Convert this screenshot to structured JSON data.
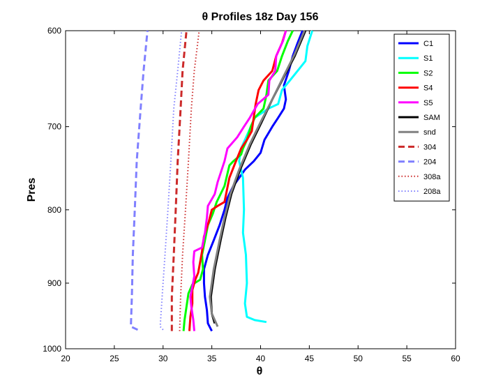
{
  "chart_data": {
    "type": "line",
    "title": "θ Profiles 18z Day 156",
    "xlabel": "θ",
    "ylabel": "Pres",
    "xlim": [
      20,
      60
    ],
    "ylim": [
      600,
      1000
    ],
    "y_reversed": true,
    "x_ticks": [
      "20",
      "25",
      "30",
      "35",
      "40",
      "45",
      "50",
      "55",
      "60"
    ],
    "y_ticks": [
      "600",
      "700",
      "800",
      "900",
      "1000"
    ],
    "y_tick_values": [
      600,
      700,
      800,
      900,
      1000
    ],
    "grid": false,
    "legend_position": "top-right",
    "series": [
      {
        "name": "C1",
        "color": "#0000ff",
        "style": "solid",
        "width": 3,
        "points": [
          [
            35.0,
            972
          ],
          [
            34.6,
            960
          ],
          [
            34.5,
            940
          ],
          [
            34.3,
            920
          ],
          [
            34.2,
            900
          ],
          [
            34.2,
            880
          ],
          [
            34.6,
            860
          ],
          [
            35.2,
            840
          ],
          [
            35.8,
            820
          ],
          [
            36.3,
            800
          ],
          [
            36.6,
            785
          ],
          [
            37.2,
            770
          ],
          [
            37.8,
            760
          ],
          [
            38.4,
            750
          ],
          [
            39.3,
            740
          ],
          [
            40.0,
            730
          ],
          [
            40.4,
            715
          ],
          [
            41.2,
            700
          ],
          [
            41.8,
            690
          ],
          [
            42.4,
            680
          ],
          [
            42.6,
            670
          ],
          [
            42.4,
            655
          ],
          [
            42.9,
            640
          ],
          [
            43.3,
            625
          ],
          [
            43.8,
            612
          ],
          [
            44.3,
            600
          ]
        ]
      },
      {
        "name": "S1",
        "color": "#00ffff",
        "style": "solid",
        "width": 3,
        "points": [
          [
            40.6,
            958
          ],
          [
            39.4,
            955
          ],
          [
            38.6,
            950
          ],
          [
            38.4,
            930
          ],
          [
            38.6,
            900
          ],
          [
            38.5,
            860
          ],
          [
            38.2,
            830
          ],
          [
            38.3,
            800
          ],
          [
            38.2,
            760
          ],
          [
            37.8,
            740
          ],
          [
            38.0,
            725
          ],
          [
            38.8,
            705
          ],
          [
            39.4,
            690
          ],
          [
            40.1,
            685
          ],
          [
            40.8,
            680
          ],
          [
            41.8,
            675
          ],
          [
            42.2,
            660
          ],
          [
            43.0,
            650
          ],
          [
            43.8,
            640
          ],
          [
            44.6,
            630
          ],
          [
            44.8,
            615
          ],
          [
            45.3,
            600
          ]
        ]
      },
      {
        "name": "S2",
        "color": "#00ff00",
        "style": "solid",
        "width": 3,
        "points": [
          [
            32.1,
            972
          ],
          [
            32.2,
            955
          ],
          [
            32.4,
            935
          ],
          [
            32.6,
            915
          ],
          [
            33.0,
            902
          ],
          [
            33.8,
            895
          ],
          [
            34.1,
            880
          ],
          [
            34.0,
            860
          ],
          [
            34.3,
            840
          ],
          [
            34.6,
            820
          ],
          [
            35.1,
            805
          ],
          [
            35.5,
            790
          ],
          [
            36.3,
            770
          ],
          [
            36.8,
            745
          ],
          [
            37.2,
            740
          ],
          [
            38.0,
            732
          ],
          [
            38.2,
            725
          ],
          [
            38.6,
            715
          ],
          [
            39.0,
            700
          ],
          [
            39.4,
            690
          ],
          [
            40.3,
            680
          ],
          [
            40.6,
            665
          ],
          [
            40.8,
            650
          ],
          [
            41.7,
            640
          ],
          [
            42.2,
            625
          ],
          [
            42.8,
            610
          ],
          [
            43.3,
            600
          ]
        ]
      },
      {
        "name": "S4",
        "color": "#ff0000",
        "style": "solid",
        "width": 3,
        "points": [
          [
            32.7,
            972
          ],
          [
            32.8,
            950
          ],
          [
            33.0,
            930
          ],
          [
            33.0,
            910
          ],
          [
            33.3,
            895
          ],
          [
            33.6,
            885
          ],
          [
            33.8,
            870
          ],
          [
            34.0,
            855
          ],
          [
            34.2,
            835
          ],
          [
            34.7,
            815
          ],
          [
            35.0,
            800
          ],
          [
            35.6,
            795
          ],
          [
            36.3,
            790
          ],
          [
            36.8,
            760
          ],
          [
            37.4,
            742
          ],
          [
            38.0,
            725
          ],
          [
            38.6,
            715
          ],
          [
            39.1,
            705
          ],
          [
            39.3,
            690
          ],
          [
            39.5,
            675
          ],
          [
            39.8,
            660
          ],
          [
            40.3,
            650
          ],
          [
            41.2,
            640
          ],
          [
            41.6,
            625
          ],
          [
            42.2,
            612
          ],
          [
            42.6,
            600
          ]
        ]
      },
      {
        "name": "S5",
        "color": "#ff00ff",
        "style": "solid",
        "width": 3,
        "points": [
          [
            33.2,
            972
          ],
          [
            33.1,
            955
          ],
          [
            32.9,
            935
          ],
          [
            32.8,
            920
          ],
          [
            33.0,
            905
          ],
          [
            33.2,
            890
          ],
          [
            33.1,
            870
          ],
          [
            33.2,
            855
          ],
          [
            34.0,
            850
          ],
          [
            34.3,
            830
          ],
          [
            34.5,
            810
          ],
          [
            34.6,
            795
          ],
          [
            35.3,
            780
          ],
          [
            35.6,
            765
          ],
          [
            36.3,
            740
          ],
          [
            36.6,
            725
          ],
          [
            37.6,
            712
          ],
          [
            38.3,
            700
          ],
          [
            38.9,
            690
          ],
          [
            39.7,
            675
          ],
          [
            40.8,
            665
          ],
          [
            40.9,
            650
          ],
          [
            41.5,
            640
          ],
          [
            41.6,
            625
          ],
          [
            42.3,
            610
          ],
          [
            42.6,
            600
          ]
        ]
      },
      {
        "name": "SAM",
        "color": "#000000",
        "style": "solid",
        "width": 3,
        "points": [
          [
            35.3,
            960
          ],
          [
            35.0,
            945
          ],
          [
            34.9,
            920
          ],
          [
            35.3,
            880
          ],
          [
            35.9,
            840
          ],
          [
            36.4,
            810
          ],
          [
            37.0,
            780
          ],
          [
            37.9,
            750
          ],
          [
            39.0,
            720
          ],
          [
            40.1,
            695
          ],
          [
            41.2,
            670
          ],
          [
            42.3,
            648
          ],
          [
            43.5,
            625
          ],
          [
            44.6,
            600
          ]
        ]
      },
      {
        "name": "snd",
        "color": "#808080",
        "style": "solid",
        "width": 3,
        "points": [
          [
            35.6,
            965
          ],
          [
            35.0,
            945
          ],
          [
            34.8,
            920
          ],
          [
            35.2,
            880
          ],
          [
            35.8,
            840
          ],
          [
            36.3,
            810
          ],
          [
            36.9,
            780
          ],
          [
            37.8,
            750
          ],
          [
            38.9,
            720
          ],
          [
            40.0,
            695
          ],
          [
            41.2,
            670
          ],
          [
            42.3,
            647
          ],
          [
            43.5,
            623
          ],
          [
            44.5,
            600
          ]
        ]
      },
      {
        "name": "304",
        "color": "#cc2a2a",
        "style": "dashed",
        "width": 3,
        "points": [
          [
            30.9,
            972
          ],
          [
            30.9,
            920
          ],
          [
            31.1,
            860
          ],
          [
            31.3,
            800
          ],
          [
            31.5,
            740
          ],
          [
            31.8,
            680
          ],
          [
            32.0,
            640
          ],
          [
            32.4,
            600
          ]
        ]
      },
      {
        "name": "204",
        "color": "#8080ff",
        "style": "dashed",
        "width": 3,
        "points": [
          [
            27.4,
            970
          ],
          [
            26.7,
            965
          ],
          [
            26.8,
            920
          ],
          [
            26.9,
            860
          ],
          [
            27.1,
            800
          ],
          [
            27.3,
            740
          ],
          [
            27.7,
            680
          ],
          [
            28.0,
            640
          ],
          [
            28.4,
            600
          ]
        ]
      },
      {
        "name": "308a",
        "color": "#cc2a2a",
        "style": "dotted",
        "width": 2,
        "points": [
          [
            31.7,
            972
          ],
          [
            31.8,
            920
          ],
          [
            32.0,
            860
          ],
          [
            32.3,
            800
          ],
          [
            32.6,
            740
          ],
          [
            32.9,
            680
          ],
          [
            33.2,
            640
          ],
          [
            33.7,
            600
          ]
        ]
      },
      {
        "name": "208a",
        "color": "#8080ff",
        "style": "dotted",
        "width": 2,
        "points": [
          [
            30.0,
            970
          ],
          [
            29.7,
            965
          ],
          [
            29.9,
            920
          ],
          [
            30.2,
            860
          ],
          [
            30.5,
            800
          ],
          [
            30.8,
            740
          ],
          [
            31.1,
            680
          ],
          [
            31.5,
            640
          ],
          [
            31.9,
            600
          ]
        ]
      }
    ]
  }
}
